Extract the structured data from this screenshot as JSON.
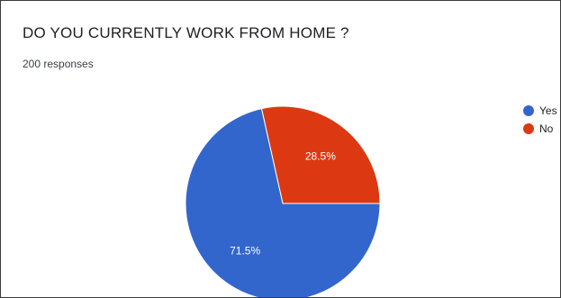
{
  "header": {
    "title": "DO YOU CURRENTLY WORK FROM HOME ?",
    "responses": "200 responses"
  },
  "legend": {
    "items": [
      {
        "label": "Yes",
        "color": "#3366cc"
      },
      {
        "label": "No",
        "color": "#dc3912"
      }
    ]
  },
  "chart_data": {
    "type": "pie",
    "title": "DO YOU CURRENTLY WORK FROM HOME ?",
    "categories": [
      "Yes",
      "No"
    ],
    "values": [
      71.5,
      28.5
    ],
    "labels": [
      "71.5%",
      "28.5%"
    ],
    "colors": [
      "#3366cc",
      "#dc3912"
    ],
    "legend_position": "right"
  }
}
